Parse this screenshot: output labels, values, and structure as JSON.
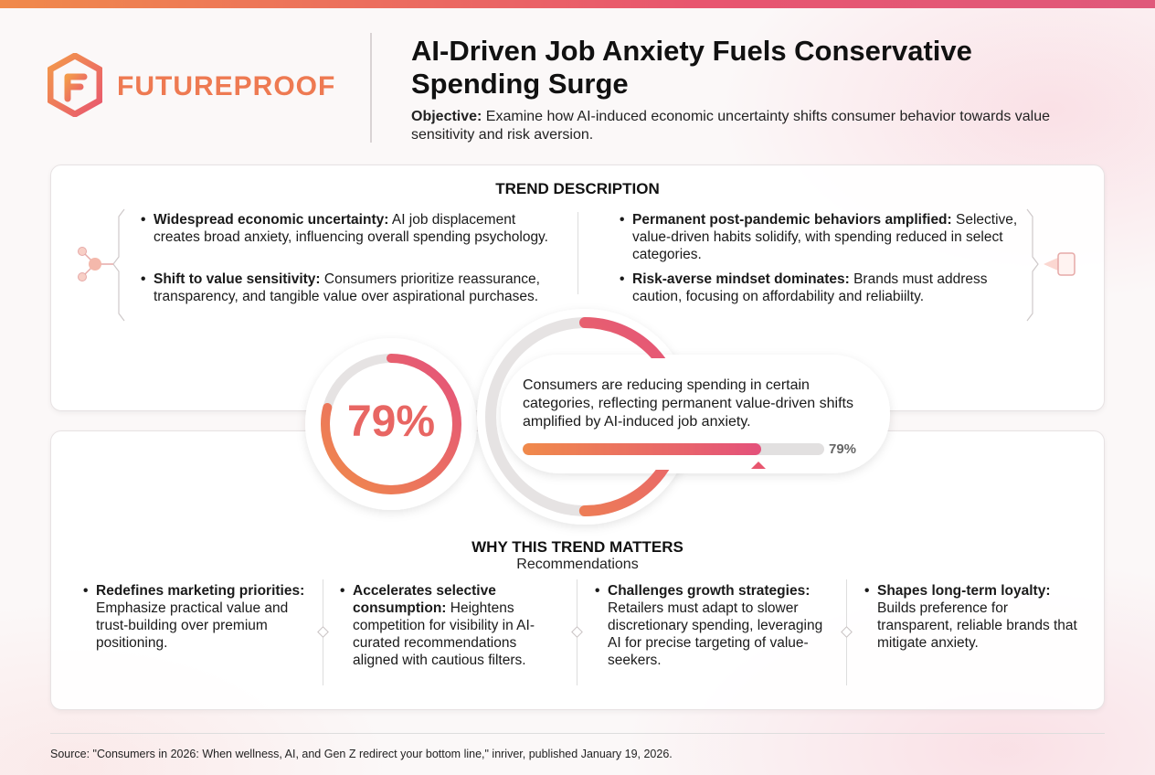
{
  "brand": {
    "name": "FUTUREPROOF",
    "logo_icon": "hexagon-f-logo-icon",
    "accent": "#ee7a52"
  },
  "header": {
    "title": "AI-Driven Job Anxiety Fuels Conservative Spending Surge",
    "objective_label": "Objective:",
    "objective_text": " Examine how AI-induced economic uncertainty shifts consumer behavior towards value sensitivity and risk aversion."
  },
  "trend": {
    "title": "TREND DESCRIPTION",
    "items": [
      {
        "heading": "Widespread economic uncertainty:",
        "text": " AI job displacement creates broad anxiety, influencing overall spending psychology."
      },
      {
        "heading": "Shift to value sensitivity:",
        "text": " Consumers prioritize reassurance, transparency, and tangible value over aspirational purchases."
      },
      {
        "heading": "Permanent post-pandemic behaviors amplified:",
        "text": " Selective, value-driven habits solidify, with spending reduced in select categories."
      },
      {
        "heading": "Risk-averse mindset dominates:",
        "text": " Brands must address caution, focusing on affordability and reliabiilty."
      }
    ]
  },
  "stat": {
    "value_label": "79%",
    "value": 79,
    "text": "Consumers are reducing spending in certain categories, reflecting permanent value-driven shifts amplified by AI-induced job anxiety.",
    "bar_label": "79%",
    "gradient_start": "#f08a4b",
    "gradient_end": "#e4517b"
  },
  "why": {
    "title": "WHY THIS TREND MATTERS",
    "subtitle": "Recommendations",
    "items": [
      {
        "heading": "Redefines marketing priorities:",
        "text": " Emphasize practical value and trust-building over premium positioning."
      },
      {
        "heading": "Accelerates selective consumption:",
        "text": " Heightens competition for visibility in AI-curated recommendations aligned with cautious filters."
      },
      {
        "heading": "Challenges growth strategies:",
        "text": " Retailers must adapt to slower discretionary spending, leveraging AI for precise targeting of value-seekers."
      },
      {
        "heading": "Shapes long-term loyalty:",
        "text": " Builds preference for transparent, reliable brands that mitigate anxiety."
      }
    ]
  },
  "source": "Source: \"Consumers in 2026: When wellness, AI, and Gen Z redirect your bottom line,\" inriver, published January 19, 2026."
}
